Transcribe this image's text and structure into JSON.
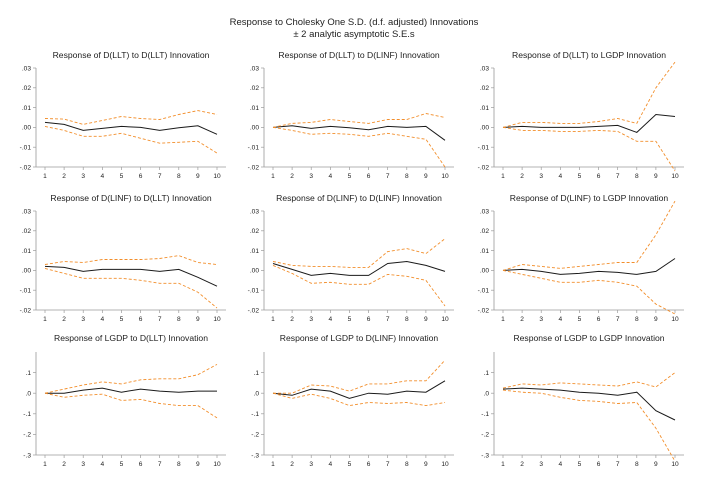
{
  "title": "Response to Cholesky One S.D. (d.f. adjusted) Innovations",
  "subtitle": "± 2 analytic asymptotic S.E.s",
  "colors": {
    "response": "#1a1a1a",
    "band": "#f28e2b",
    "axis": "#9a9a9a"
  },
  "chart_data": [
    {
      "type": "line",
      "title": "Response of D(LLT) to D(LLT) Innovation",
      "x": [
        1,
        2,
        3,
        4,
        5,
        6,
        7,
        8,
        9,
        10
      ],
      "xticks": [
        "1",
        "2",
        "3",
        "4",
        "5",
        "6",
        "7",
        "8",
        "9",
        "10"
      ],
      "ylim": [
        -0.02,
        0.03
      ],
      "yticks": [
        -0.02,
        -0.01,
        0.0,
        0.01,
        0.02,
        0.03
      ],
      "ytick_labels": [
        "-.02",
        "-.01",
        ".00",
        ".01",
        ".02",
        ".03"
      ],
      "series": [
        {
          "role": "response",
          "values": [
            0.0025,
            0.0015,
            -0.0015,
            -0.0005,
            0.0005,
            0.0,
            -0.0015,
            -0.0002,
            0.0008,
            -0.0035
          ]
        },
        {
          "role": "upper",
          "values": [
            0.0045,
            0.0042,
            0.0015,
            0.0035,
            0.0055,
            0.0045,
            0.004,
            0.0065,
            0.0085,
            0.0065
          ]
        },
        {
          "role": "lower",
          "values": [
            0.0005,
            -0.0015,
            -0.0045,
            -0.0045,
            -0.003,
            -0.0055,
            -0.008,
            -0.0075,
            -0.007,
            -0.013
          ]
        }
      ]
    },
    {
      "type": "line",
      "title": "Response of D(LLT) to D(LINF) Innovation",
      "x": [
        1,
        2,
        3,
        4,
        5,
        6,
        7,
        8,
        9,
        10
      ],
      "xticks": [
        "1",
        "2",
        "3",
        "4",
        "5",
        "6",
        "7",
        "8",
        "9",
        "10"
      ],
      "ylim": [
        -0.02,
        0.03
      ],
      "yticks": [
        -0.02,
        -0.01,
        0.0,
        0.01,
        0.02,
        0.03
      ],
      "ytick_labels": [
        "-.02",
        "-.01",
        ".00",
        ".01",
        ".02",
        ".03"
      ],
      "series": [
        {
          "role": "response",
          "values": [
            0.0,
            0.0008,
            -0.0005,
            0.0005,
            -0.0002,
            -0.0012,
            0.0005,
            0.0,
            0.0005,
            -0.0065
          ]
        },
        {
          "role": "upper",
          "values": [
            0.0,
            0.002,
            0.0025,
            0.004,
            0.003,
            0.002,
            0.004,
            0.004,
            0.007,
            0.005
          ]
        },
        {
          "role": "lower",
          "values": [
            0.0,
            -0.0015,
            -0.0035,
            -0.003,
            -0.0035,
            -0.0045,
            -0.003,
            -0.0045,
            -0.006,
            -0.02
          ]
        }
      ]
    },
    {
      "type": "line",
      "title": "Response of D(LLT) to LGDP Innovation",
      "x": [
        1,
        2,
        3,
        4,
        5,
        6,
        7,
        8,
        9,
        10
      ],
      "xticks": [
        "1",
        "2",
        "3",
        "4",
        "5",
        "6",
        "7",
        "8",
        "9",
        "10"
      ],
      "ylim": [
        -0.02,
        0.03
      ],
      "yticks": [
        -0.02,
        -0.01,
        0.0,
        0.01,
        0.02,
        0.03
      ],
      "ytick_labels": [
        "-.02",
        "-.01",
        ".00",
        ".01",
        ".02",
        ".03"
      ],
      "series": [
        {
          "role": "response",
          "values": [
            0.0,
            0.0005,
            0.0,
            0.0,
            0.0,
            0.0005,
            0.001,
            -0.0025,
            0.0065,
            0.0055
          ]
        },
        {
          "role": "upper",
          "values": [
            0.0,
            0.0025,
            0.0025,
            0.002,
            0.002,
            0.003,
            0.0045,
            0.002,
            0.02,
            0.033
          ]
        },
        {
          "role": "lower",
          "values": [
            0.0,
            -0.0015,
            -0.0015,
            -0.002,
            -0.002,
            -0.0015,
            -0.002,
            -0.007,
            -0.007,
            -0.022
          ]
        }
      ]
    },
    {
      "type": "line",
      "title": "Response of D(LINF) to D(LLT) Innovation",
      "x": [
        1,
        2,
        3,
        4,
        5,
        6,
        7,
        8,
        9,
        10
      ],
      "xticks": [
        "1",
        "2",
        "3",
        "4",
        "5",
        "6",
        "7",
        "8",
        "9",
        "10"
      ],
      "ylim": [
        -0.02,
        0.03
      ],
      "yticks": [
        -0.02,
        -0.01,
        0.0,
        0.01,
        0.02,
        0.03
      ],
      "ytick_labels": [
        "-.02",
        "-.01",
        ".00",
        ".01",
        ".02",
        ".03"
      ],
      "series": [
        {
          "role": "response",
          "values": [
            0.002,
            0.0015,
            -0.0005,
            0.0005,
            0.0005,
            0.0005,
            -0.0005,
            0.0005,
            -0.0035,
            -0.008
          ]
        },
        {
          "role": "upper",
          "values": [
            0.003,
            0.0045,
            0.004,
            0.0055,
            0.0055,
            0.0055,
            0.006,
            0.0075,
            0.004,
            0.003
          ]
        },
        {
          "role": "lower",
          "values": [
            0.001,
            -0.0015,
            -0.004,
            -0.004,
            -0.004,
            -0.005,
            -0.0065,
            -0.0065,
            -0.011,
            -0.019
          ]
        }
      ]
    },
    {
      "type": "line",
      "title": "Response of D(LINF) to D(LINF) Innovation",
      "x": [
        1,
        2,
        3,
        4,
        5,
        6,
        7,
        8,
        9,
        10
      ],
      "xticks": [
        "1",
        "2",
        "3",
        "4",
        "5",
        "6",
        "7",
        "8",
        "9",
        "10"
      ],
      "ylim": [
        -0.02,
        0.03
      ],
      "yticks": [
        -0.02,
        -0.01,
        0.0,
        0.01,
        0.02,
        0.03
      ],
      "ytick_labels": [
        "-.02",
        "-.01",
        ".00",
        ".01",
        ".02",
        ".03"
      ],
      "series": [
        {
          "role": "response",
          "values": [
            0.0035,
            0.0005,
            -0.0025,
            -0.0015,
            -0.0025,
            -0.0025,
            0.0035,
            0.0045,
            0.0025,
            -0.0005
          ]
        },
        {
          "role": "upper",
          "values": [
            0.0045,
            0.0025,
            0.002,
            0.002,
            0.0015,
            0.0015,
            0.0095,
            0.011,
            0.0085,
            0.016
          ]
        },
        {
          "role": "lower",
          "values": [
            0.0025,
            -0.0015,
            -0.0065,
            -0.006,
            -0.007,
            -0.007,
            -0.002,
            -0.003,
            -0.005,
            -0.018
          ]
        }
      ]
    },
    {
      "type": "line",
      "title": "Response of D(LINF) to LGDP Innovation",
      "x": [
        1,
        2,
        3,
        4,
        5,
        6,
        7,
        8,
        9,
        10
      ],
      "xticks": [
        "1",
        "2",
        "3",
        "4",
        "5",
        "6",
        "7",
        "8",
        "9",
        "10"
      ],
      "ylim": [
        -0.02,
        0.03
      ],
      "yticks": [
        -0.02,
        -0.01,
        0.0,
        0.01,
        0.02,
        0.03
      ],
      "ytick_labels": [
        "-.02",
        "-.01",
        ".00",
        ".01",
        ".02",
        ".03"
      ],
      "series": [
        {
          "role": "response",
          "values": [
            0.0,
            0.0005,
            -0.0005,
            -0.002,
            -0.0015,
            -0.0005,
            -0.001,
            -0.002,
            -0.0005,
            0.006
          ]
        },
        {
          "role": "upper",
          "values": [
            0.0,
            0.003,
            0.002,
            0.001,
            0.002,
            0.003,
            0.004,
            0.004,
            0.018,
            0.035
          ]
        },
        {
          "role": "lower",
          "values": [
            0.0,
            -0.002,
            -0.004,
            -0.006,
            -0.006,
            -0.005,
            -0.006,
            -0.008,
            -0.017,
            -0.022
          ]
        }
      ]
    },
    {
      "type": "line",
      "title": "Response of LGDP to D(LLT) Innovation",
      "x": [
        1,
        2,
        3,
        4,
        5,
        6,
        7,
        8,
        9,
        10
      ],
      "xticks": [
        "1",
        "2",
        "3",
        "4",
        "5",
        "6",
        "7",
        "8",
        "9",
        "10"
      ],
      "ylim": [
        -0.3,
        0.2
      ],
      "yticks": [
        -0.3,
        -0.2,
        -0.1,
        0.0,
        0.1
      ],
      "ytick_labels": [
        "-.3",
        "-.2",
        "-.1",
        ".0",
        ".1"
      ],
      "series": [
        {
          "role": "response",
          "values": [
            0.0,
            0.0,
            0.015,
            0.025,
            0.005,
            0.02,
            0.01,
            0.005,
            0.01,
            0.01
          ]
        },
        {
          "role": "upper",
          "values": [
            0.0,
            0.02,
            0.04,
            0.055,
            0.045,
            0.065,
            0.07,
            0.07,
            0.09,
            0.14
          ]
        },
        {
          "role": "lower",
          "values": [
            0.0,
            -0.02,
            -0.01,
            -0.005,
            -0.035,
            -0.03,
            -0.05,
            -0.06,
            -0.06,
            -0.12
          ]
        }
      ]
    },
    {
      "type": "line",
      "title": "Response of LGDP to D(LINF) Innovation",
      "x": [
        1,
        2,
        3,
        4,
        5,
        6,
        7,
        8,
        9,
        10
      ],
      "xticks": [
        "1",
        "2",
        "3",
        "4",
        "5",
        "6",
        "7",
        "8",
        "9",
        "10"
      ],
      "ylim": [
        -0.3,
        0.2
      ],
      "yticks": [
        -0.3,
        -0.2,
        -0.1,
        0.0,
        0.1
      ],
      "ytick_labels": [
        "-.3",
        "-.2",
        "-.1",
        ".0",
        ".1"
      ],
      "series": [
        {
          "role": "response",
          "values": [
            0.0,
            -0.01,
            0.02,
            0.01,
            -0.025,
            0.0,
            -0.005,
            0.01,
            0.005,
            0.06
          ]
        },
        {
          "role": "upper",
          "values": [
            0.0,
            0.0,
            0.04,
            0.035,
            0.01,
            0.045,
            0.045,
            0.06,
            0.06,
            0.16
          ]
        },
        {
          "role": "lower",
          "values": [
            0.0,
            -0.025,
            -0.005,
            -0.025,
            -0.06,
            -0.045,
            -0.05,
            -0.045,
            -0.06,
            -0.045
          ]
        }
      ]
    },
    {
      "type": "line",
      "title": "Response of LGDP to LGDP Innovation",
      "x": [
        1,
        2,
        3,
        4,
        5,
        6,
        7,
        8,
        9,
        10
      ],
      "xticks": [
        "1",
        "2",
        "3",
        "4",
        "5",
        "6",
        "7",
        "8",
        "9",
        "10"
      ],
      "ylim": [
        -0.3,
        0.2
      ],
      "yticks": [
        -0.3,
        -0.2,
        -0.1,
        0.0,
        0.1
      ],
      "ytick_labels": [
        "-.3",
        "-.2",
        "-.1",
        ".0",
        ".1"
      ],
      "series": [
        {
          "role": "response",
          "values": [
            0.02,
            0.025,
            0.02,
            0.015,
            0.005,
            0.0,
            -0.01,
            0.005,
            -0.085,
            -0.13
          ]
        },
        {
          "role": "upper",
          "values": [
            0.025,
            0.045,
            0.04,
            0.05,
            0.045,
            0.04,
            0.035,
            0.055,
            0.03,
            0.1
          ]
        },
        {
          "role": "lower",
          "values": [
            0.015,
            0.005,
            0.0,
            -0.02,
            -0.035,
            -0.04,
            -0.05,
            -0.045,
            -0.17,
            -0.33
          ]
        }
      ]
    }
  ]
}
